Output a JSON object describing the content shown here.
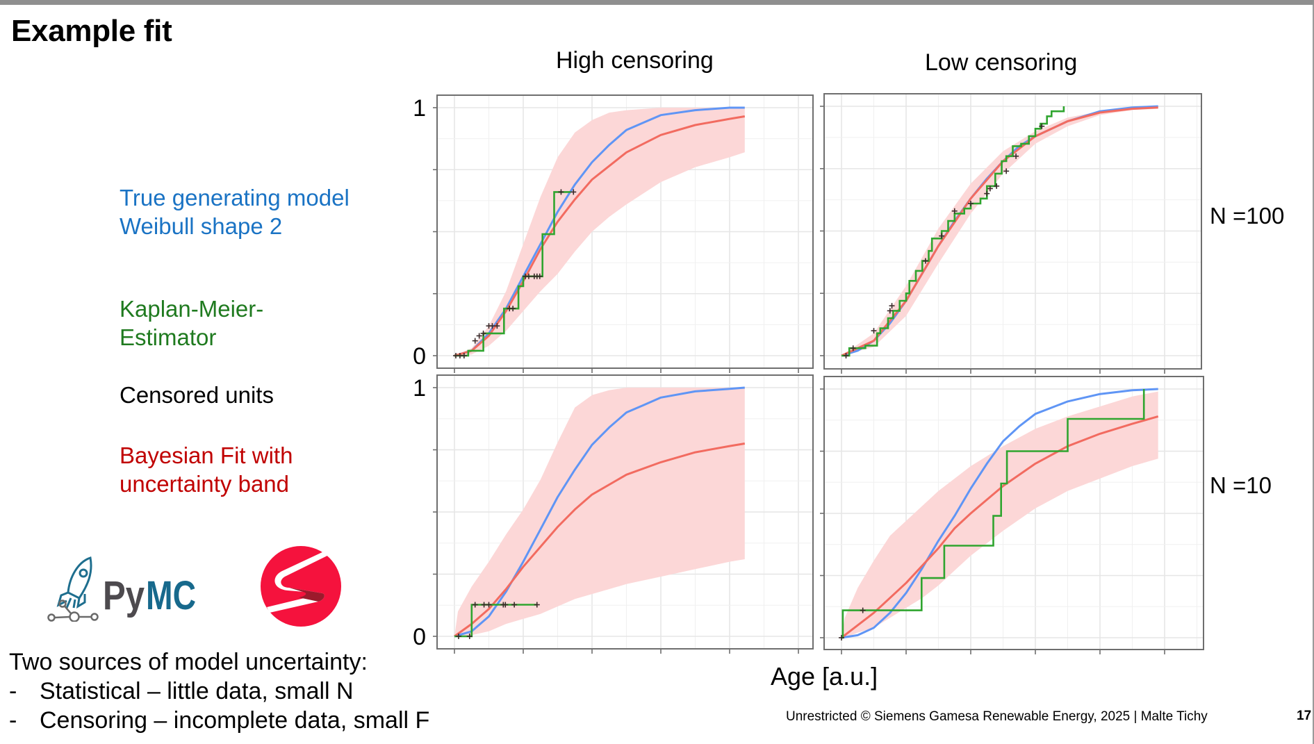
{
  "slide": {
    "title": "Example fit",
    "page_number": "17",
    "footer": "Unrestricted © Siemens Gamesa Renewable Energy, 2025 | Malte Tichy"
  },
  "column_headers": [
    "High censoring",
    "Low censoring"
  ],
  "row_labels": [
    "N =100",
    "N =10"
  ],
  "legend": {
    "true_model": [
      "True generating model",
      "Weibull shape 2"
    ],
    "kaplan_meier": [
      "Kaplan-Meier-",
      "Estimator"
    ],
    "censored": "Censored units",
    "bayesian": [
      "Bayesian Fit with",
      "uncertainty band"
    ]
  },
  "colors": {
    "true_model_text": "#1a73c4",
    "kaplan_meier_text": "#1f7a1f",
    "bayesian_text": "#c00000",
    "true_line": "#5f95f5",
    "fit_line": "#f26b60",
    "band": "#fcd7d7",
    "km_line": "#2fa52f",
    "censor_mark": "#3a2a2a"
  },
  "logos": {
    "pymc": "PyMC",
    "pymc_py": "Py",
    "pymc_mc": "MC",
    "stan": "S-logo"
  },
  "notes": {
    "heading": "Two sources of model uncertainty:",
    "items": [
      {
        "bullet": "-",
        "text": "Statistical – little data, small N"
      },
      {
        "bullet": "-",
        "text": "Censoring – incomplete data, small F"
      }
    ]
  },
  "chart_data": [
    {
      "type": "line",
      "panel": "high-censoring-n100",
      "title": "High censoring",
      "row_label": "N =100",
      "xlabel": "Age [a.u.]",
      "ylabel": "",
      "xlim": [
        -0.3,
        5.2
      ],
      "ylim": [
        -0.05,
        1.05
      ],
      "yticks": [
        0,
        0.25,
        0.5,
        0.75,
        1
      ],
      "ytick_labels": [
        "0",
        "",
        "",
        "",
        "1"
      ],
      "xticks": [
        0,
        1,
        2,
        3,
        4,
        5
      ],
      "grid": true,
      "series": [
        {
          "name": "True generating model",
          "kind": "line",
          "color": "#5f95f5",
          "x": [
            0,
            0.25,
            0.5,
            0.75,
            1.0,
            1.25,
            1.5,
            1.75,
            2.0,
            2.25,
            2.5,
            2.75,
            3.0,
            3.5,
            4.0,
            4.22
          ],
          "y": [
            0,
            0.02,
            0.09,
            0.19,
            0.32,
            0.45,
            0.58,
            0.69,
            0.78,
            0.85,
            0.91,
            0.94,
            0.97,
            0.99,
            1.0,
            1.0
          ]
        },
        {
          "name": "Bayesian fit",
          "kind": "line",
          "color": "#f26b60",
          "x": [
            0,
            0.25,
            0.5,
            0.75,
            1.0,
            1.25,
            1.5,
            1.75,
            2.0,
            2.5,
            3.0,
            3.5,
            4.0,
            4.22
          ],
          "y": [
            0,
            0.02,
            0.08,
            0.18,
            0.3,
            0.43,
            0.54,
            0.63,
            0.71,
            0.82,
            0.89,
            0.93,
            0.955,
            0.965
          ]
        },
        {
          "name": "Uncertainty band",
          "kind": "band",
          "color": "#fcd7d7",
          "x": [
            0,
            0.25,
            0.5,
            0.75,
            1.0,
            1.25,
            1.5,
            1.75,
            2.0,
            2.25,
            2.5,
            3.0,
            3.5,
            4.0,
            4.22
          ],
          "upper": [
            0,
            0.03,
            0.12,
            0.26,
            0.45,
            0.64,
            0.8,
            0.9,
            0.95,
            0.98,
            0.99,
            1.0,
            1.0,
            1.0,
            1.0
          ],
          "lower": [
            0,
            0.005,
            0.04,
            0.1,
            0.18,
            0.26,
            0.33,
            0.42,
            0.5,
            0.56,
            0.61,
            0.7,
            0.76,
            0.8,
            0.82
          ]
        },
        {
          "name": "Kaplan-Meier-Estimator",
          "kind": "step",
          "color": "#2fa52f",
          "x": [
            0,
            0.2,
            0.42,
            0.72,
            0.93,
            1.0,
            1.28,
            1.45,
            1.69
          ],
          "y": [
            0,
            0.02,
            0.09,
            0.19,
            0.28,
            0.32,
            0.49,
            0.66,
            0.66
          ]
        },
        {
          "name": "Censored units",
          "kind": "marks",
          "color": "#3a2a2a",
          "x": [
            0.02,
            0.08,
            0.14,
            0.3,
            0.36,
            0.42,
            0.5,
            0.55,
            0.62,
            0.8,
            0.85,
            1.03,
            1.08,
            1.16,
            1.2,
            1.24,
            1.55,
            1.73
          ],
          "y": [
            0,
            0,
            0,
            0.06,
            0.08,
            0.09,
            0.12,
            0.12,
            0.12,
            0.19,
            0.19,
            0.32,
            0.32,
            0.32,
            0.32,
            0.32,
            0.66,
            0.66
          ]
        }
      ]
    },
    {
      "type": "line",
      "panel": "low-censoring-n100",
      "title": "Low censoring",
      "row_label": "N =100",
      "xlabel": "Age [a.u.]",
      "ylabel": "",
      "xlim": [
        -0.3,
        5.2
      ],
      "ylim": [
        -0.05,
        1.05
      ],
      "yticks": [
        0,
        0.25,
        0.5,
        0.75,
        1
      ],
      "ytick_labels": [
        "",
        "",
        "",
        "",
        ""
      ],
      "xticks": [
        0,
        1,
        2,
        3,
        4,
        5
      ],
      "grid": true,
      "series": [
        {
          "name": "True generating model",
          "kind": "line",
          "color": "#5f95f5",
          "x": [
            0,
            0.25,
            0.5,
            0.75,
            1.0,
            1.25,
            1.5,
            1.75,
            2.0,
            2.25,
            2.5,
            2.75,
            3.0,
            3.5,
            4.0,
            4.5,
            4.9
          ],
          "y": [
            0,
            0.02,
            0.06,
            0.13,
            0.22,
            0.33,
            0.44,
            0.54,
            0.63,
            0.71,
            0.78,
            0.84,
            0.88,
            0.94,
            0.98,
            0.995,
            1.0
          ]
        },
        {
          "name": "Bayesian fit",
          "kind": "line",
          "color": "#f26b60",
          "x": [
            0,
            0.5,
            1.0,
            1.5,
            2.0,
            2.5,
            3.0,
            3.5,
            4.0,
            4.5,
            4.9
          ],
          "y": [
            0,
            0.06,
            0.22,
            0.44,
            0.63,
            0.78,
            0.88,
            0.94,
            0.975,
            0.99,
            0.995
          ]
        },
        {
          "name": "Uncertainty band",
          "kind": "band",
          "color": "#fcd7d7",
          "x": [
            0,
            0.5,
            1.0,
            1.5,
            2.0,
            2.5,
            3.0,
            3.5,
            4.0,
            4.5,
            4.9
          ],
          "upper": [
            0,
            0.09,
            0.28,
            0.51,
            0.69,
            0.82,
            0.9,
            0.955,
            0.98,
            0.995,
            1.0
          ],
          "lower": [
            0,
            0.035,
            0.16,
            0.37,
            0.57,
            0.73,
            0.85,
            0.92,
            0.965,
            0.985,
            0.99
          ]
        },
        {
          "name": "Kaplan-Meier-Estimator",
          "kind": "step",
          "color": "#2fa52f",
          "x": [
            0,
            0.12,
            0.37,
            0.55,
            0.6,
            0.72,
            0.8,
            0.9,
            1.0,
            1.05,
            1.15,
            1.25,
            1.35,
            1.4,
            1.55,
            1.65,
            1.75,
            1.9,
            2.0,
            2.15,
            2.25,
            2.38,
            2.48,
            2.55,
            2.65,
            2.78,
            2.9,
            3.0,
            3.08,
            3.18,
            3.25,
            3.44
          ],
          "y": [
            0,
            0.03,
            0.04,
            0.09,
            0.11,
            0.15,
            0.18,
            0.22,
            0.25,
            0.3,
            0.34,
            0.38,
            0.42,
            0.47,
            0.5,
            0.54,
            0.57,
            0.59,
            0.61,
            0.63,
            0.68,
            0.73,
            0.78,
            0.8,
            0.84,
            0.85,
            0.88,
            0.91,
            0.93,
            0.96,
            0.98,
            1.0
          ]
        },
        {
          "name": "Censored units",
          "kind": "marks",
          "color": "#3a2a2a",
          "x": [
            0.07,
            0.18,
            0.5,
            0.75,
            0.78,
            1.3,
            1.55,
            1.75,
            2.0,
            2.25,
            2.3,
            2.4,
            2.55,
            2.7,
            3.1
          ],
          "y": [
            0,
            0.03,
            0.1,
            0.18,
            0.2,
            0.38,
            0.48,
            0.58,
            0.61,
            0.65,
            0.67,
            0.68,
            0.74,
            0.8,
            0.92
          ]
        }
      ]
    },
    {
      "type": "line",
      "panel": "high-censoring-n10",
      "title": "High censoring",
      "row_label": "N =10",
      "xlabel": "Age [a.u.]",
      "ylabel": "",
      "xlim": [
        -0.3,
        5.2
      ],
      "ylim": [
        -0.05,
        1.05
      ],
      "yticks": [
        0,
        0.25,
        0.5,
        0.75,
        1
      ],
      "ytick_labels": [
        "0",
        "",
        "",
        "",
        "1"
      ],
      "xticks": [
        0,
        1,
        2,
        3,
        4,
        5
      ],
      "grid": true,
      "series": [
        {
          "name": "True generating model",
          "kind": "line",
          "color": "#5f95f5",
          "x": [
            0,
            0.25,
            0.5,
            0.75,
            1.0,
            1.25,
            1.5,
            1.75,
            2.0,
            2.25,
            2.5,
            2.75,
            3.0,
            3.5,
            4.0,
            4.22
          ],
          "y": [
            0,
            0.02,
            0.08,
            0.18,
            0.3,
            0.43,
            0.56,
            0.67,
            0.77,
            0.84,
            0.9,
            0.93,
            0.96,
            0.985,
            0.995,
            1.0
          ]
        },
        {
          "name": "Bayesian fit",
          "kind": "line",
          "color": "#f26b60",
          "x": [
            0,
            0.25,
            0.5,
            0.75,
            1.0,
            1.25,
            1.5,
            1.75,
            2.0,
            2.5,
            3.0,
            3.5,
            4.0,
            4.22
          ],
          "y": [
            0,
            0.05,
            0.11,
            0.19,
            0.28,
            0.36,
            0.44,
            0.51,
            0.57,
            0.65,
            0.7,
            0.74,
            0.765,
            0.775
          ]
        },
        {
          "name": "Uncertainty band",
          "kind": "band",
          "color": "#fcd7d7",
          "x": [
            0,
            0.05,
            0.25,
            0.5,
            0.75,
            1.0,
            1.25,
            1.5,
            1.75,
            2.0,
            2.25,
            2.5,
            3.0,
            3.5,
            4.0,
            4.22
          ],
          "upper": [
            0,
            0.1,
            0.2,
            0.3,
            0.41,
            0.51,
            0.63,
            0.78,
            0.92,
            0.97,
            0.99,
            1.0,
            1.0,
            1.0,
            1.0,
            1.0
          ],
          "lower": [
            0,
            0.0,
            0.005,
            0.02,
            0.05,
            0.07,
            0.09,
            0.12,
            0.15,
            0.17,
            0.19,
            0.21,
            0.24,
            0.27,
            0.3,
            0.31
          ]
        },
        {
          "name": "Kaplan-Meier-Estimator",
          "kind": "step",
          "color": "#2fa52f",
          "x": [
            0,
            0.25,
            1.2
          ],
          "y": [
            0,
            0.127,
            0.127
          ]
        },
        {
          "name": "Censored units",
          "kind": "marks",
          "color": "#3a2a2a",
          "x": [
            0.06,
            0.22,
            0.3,
            0.43,
            0.5,
            0.71,
            0.74,
            0.87,
            1.2
          ],
          "y": [
            0,
            0,
            0.127,
            0.127,
            0.127,
            0.127,
            0.127,
            0.127,
            0.127
          ]
        }
      ]
    },
    {
      "type": "line",
      "panel": "low-censoring-n10",
      "title": "Low censoring",
      "row_label": "N =10",
      "xlabel": "Age [a.u.]",
      "ylabel": "",
      "xlim": [
        -0.3,
        5.2
      ],
      "ylim": [
        -0.05,
        1.05
      ],
      "yticks": [
        0,
        0.25,
        0.5,
        0.75,
        1
      ],
      "ytick_labels": [
        "",
        "",
        "",
        "",
        ""
      ],
      "xticks": [
        0,
        1,
        2,
        3,
        4,
        5
      ],
      "grid": true,
      "series": [
        {
          "name": "True generating model",
          "kind": "line",
          "color": "#5f95f5",
          "x": [
            0,
            0.25,
            0.5,
            0.75,
            1.0,
            1.25,
            1.5,
            1.75,
            2.0,
            2.25,
            2.5,
            2.75,
            3.0,
            3.5,
            4.0,
            4.5,
            4.9
          ],
          "y": [
            0,
            0.01,
            0.04,
            0.1,
            0.18,
            0.28,
            0.39,
            0.49,
            0.6,
            0.7,
            0.79,
            0.85,
            0.9,
            0.95,
            0.98,
            0.995,
            1.0
          ]
        },
        {
          "name": "Bayesian fit",
          "kind": "line",
          "color": "#f26b60",
          "x": [
            0,
            0.25,
            0.5,
            0.75,
            1.0,
            1.25,
            1.5,
            1.75,
            2.0,
            2.5,
            3.0,
            3.5,
            4.0,
            4.5,
            4.9
          ],
          "y": [
            0,
            0.05,
            0.1,
            0.16,
            0.22,
            0.29,
            0.36,
            0.44,
            0.5,
            0.61,
            0.7,
            0.77,
            0.82,
            0.86,
            0.89
          ]
        },
        {
          "name": "Uncertainty band",
          "kind": "band",
          "color": "#fcd7d7",
          "x": [
            0,
            0.05,
            0.25,
            0.5,
            0.75,
            1.0,
            1.25,
            1.5,
            1.75,
            2.0,
            2.5,
            3.0,
            3.5,
            4.0,
            4.5,
            4.9
          ],
          "upper": [
            0,
            0.08,
            0.2,
            0.31,
            0.41,
            0.47,
            0.53,
            0.59,
            0.64,
            0.69,
            0.77,
            0.84,
            0.89,
            0.93,
            0.97,
            0.99
          ],
          "lower": [
            0,
            0.0,
            0.02,
            0.04,
            0.08,
            0.12,
            0.16,
            0.21,
            0.27,
            0.33,
            0.43,
            0.52,
            0.59,
            0.64,
            0.69,
            0.72
          ]
        },
        {
          "name": "Kaplan-Meier-Estimator",
          "kind": "step",
          "color": "#2fa52f",
          "x": [
            0,
            0.02,
            1.24,
            1.59,
            2.35,
            2.47,
            2.56,
            3.5,
            4.68
          ],
          "y": [
            0,
            0.11,
            0.24,
            0.37,
            0.49,
            0.62,
            0.75,
            0.88,
            1.0
          ]
        },
        {
          "name": "Censored units",
          "kind": "marks",
          "color": "#3a2a2a",
          "x": [
            0.0,
            0.33
          ],
          "y": [
            0,
            0.11
          ]
        }
      ]
    }
  ]
}
